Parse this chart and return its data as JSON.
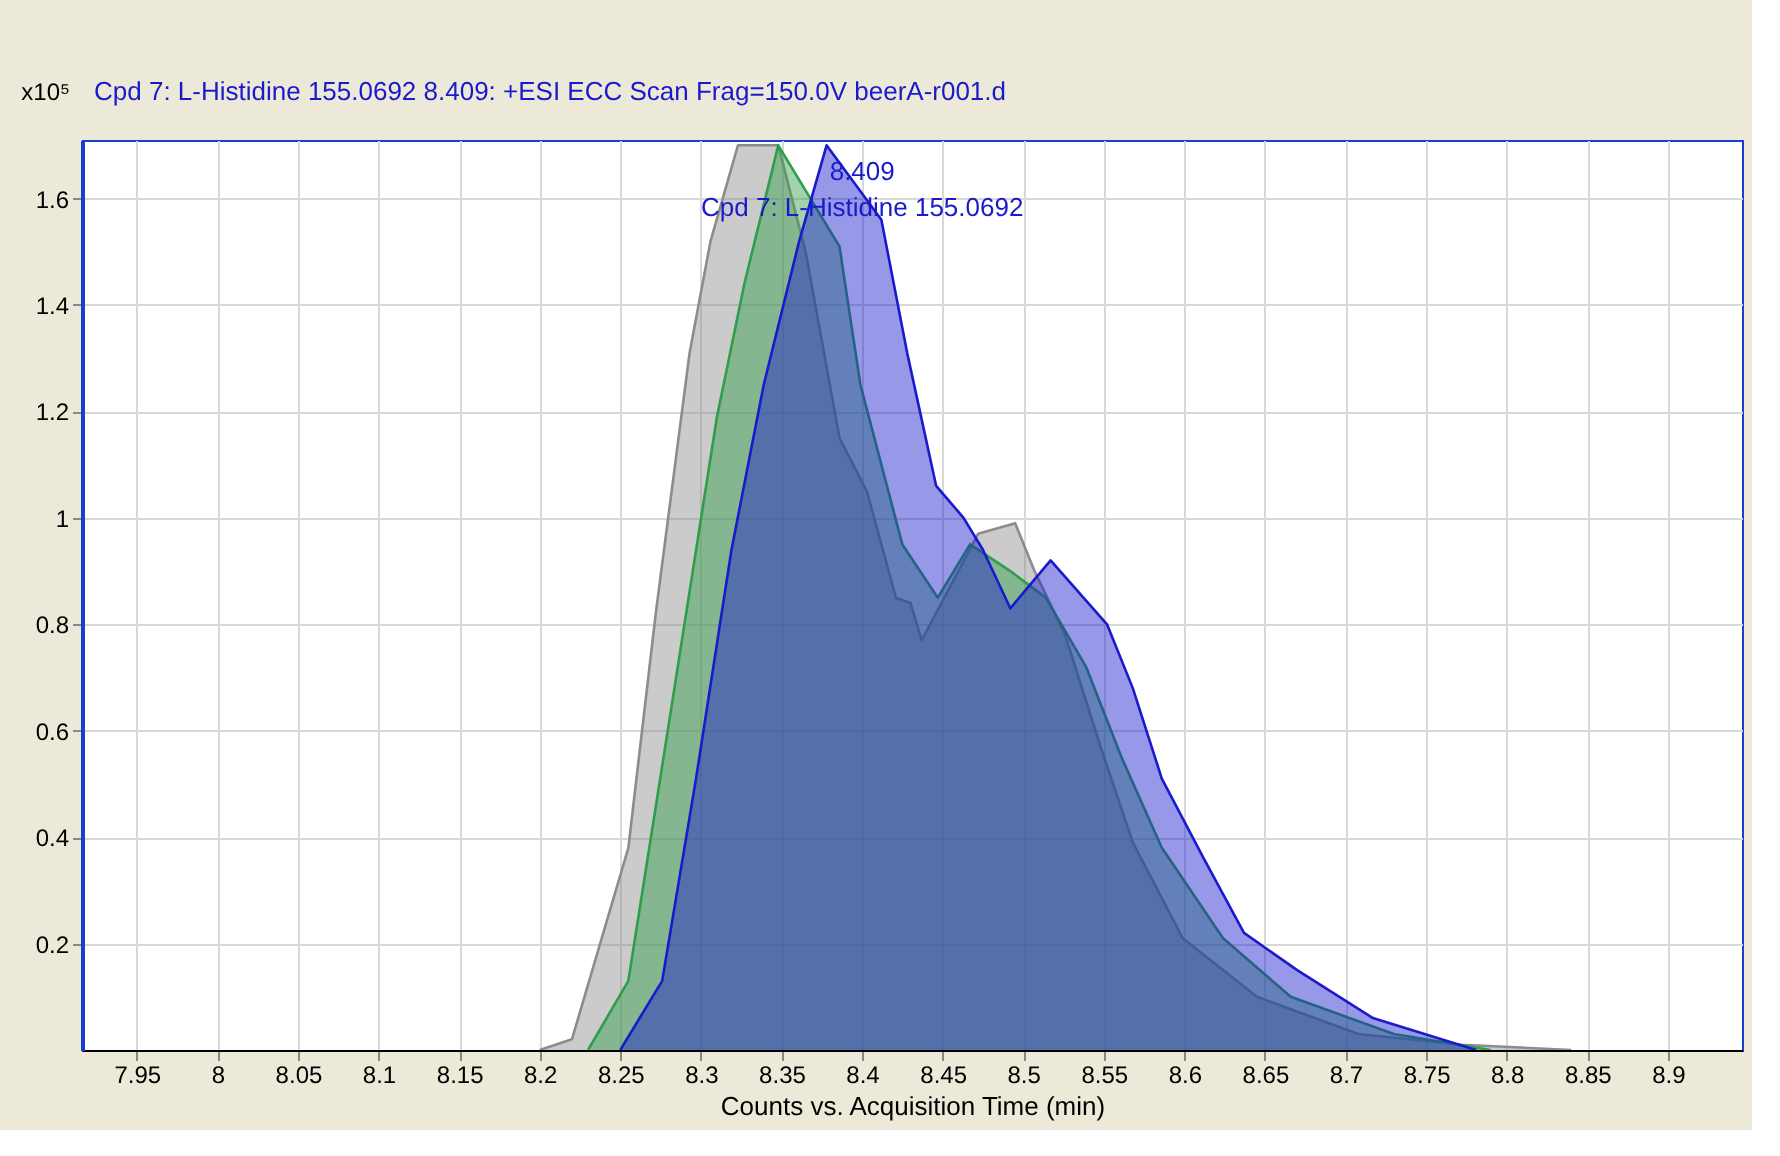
{
  "chart_data": {
    "type": "area",
    "title": "Cpd 7: L-Histidine 155.0692 8.409: +ESI ECC Scan Frag=150.0V beerA-r001.d",
    "xlabel": "Counts vs. Acquisition Time (min)",
    "ylabel": "x10⁵",
    "xlim": [
      7.916,
      8.946
    ],
    "ylim": [
      0,
      1.71
    ],
    "xticks": [
      7.95,
      8,
      8.05,
      8.1,
      8.15,
      8.2,
      8.25,
      8.3,
      8.35,
      8.4,
      8.45,
      8.5,
      8.55,
      8.6,
      8.65,
      8.7,
      8.75,
      8.8,
      8.85,
      8.9
    ],
    "yticks": [
      0.2,
      0.4,
      0.6,
      0.8,
      1,
      1.2,
      1.4,
      1.6
    ],
    "grid": true,
    "series": [
      {
        "color": "#8c8c8c",
        "x": [
          8.2,
          8.22,
          8.255,
          8.272,
          8.293,
          8.306,
          8.323,
          8.348,
          8.365,
          8.386,
          8.403,
          8.421,
          8.43,
          8.437,
          8.472,
          8.495,
          8.507,
          8.526,
          8.548,
          8.568,
          8.599,
          8.645,
          8.708,
          8.772,
          8.84
        ],
        "values": [
          0,
          0.02,
          0.38,
          0.82,
          1.31,
          1.52,
          1.7,
          1.7,
          1.5,
          1.15,
          1.05,
          0.85,
          0.84,
          0.77,
          0.97,
          0.99,
          0.9,
          0.78,
          0.57,
          0.39,
          0.21,
          0.1,
          0.03,
          0.01,
          0
        ]
      },
      {
        "color": "#2e9e4a",
        "x": [
          8.23,
          8.255,
          8.281,
          8.31,
          8.327,
          8.348,
          8.386,
          8.399,
          8.425,
          8.447,
          8.467,
          8.492,
          8.514,
          8.539,
          8.561,
          8.586,
          8.624,
          8.666,
          8.73,
          8.79
        ],
        "values": [
          0,
          0.13,
          0.63,
          1.19,
          1.44,
          1.7,
          1.51,
          1.25,
          0.95,
          0.85,
          0.95,
          0.9,
          0.85,
          0.72,
          0.55,
          0.38,
          0.21,
          0.1,
          0.03,
          0
        ]
      },
      {
        "color": "#1a1acc",
        "x": [
          8.25,
          8.276,
          8.297,
          8.319,
          8.339,
          8.361,
          8.378,
          8.412,
          8.428,
          8.446,
          8.463,
          8.475,
          8.492,
          8.517,
          8.552,
          8.568,
          8.586,
          8.612,
          8.637,
          8.67,
          8.717,
          8.781
        ],
        "values": [
          0,
          0.13,
          0.51,
          0.94,
          1.25,
          1.52,
          1.7,
          1.56,
          1.31,
          1.06,
          1.0,
          0.94,
          0.83,
          0.92,
          0.8,
          0.68,
          0.51,
          0.36,
          0.22,
          0.15,
          0.06,
          0
        ]
      }
    ],
    "annotations": [
      "8.409",
      "Cpd 7: L-Histidine 155.0692"
    ]
  }
}
